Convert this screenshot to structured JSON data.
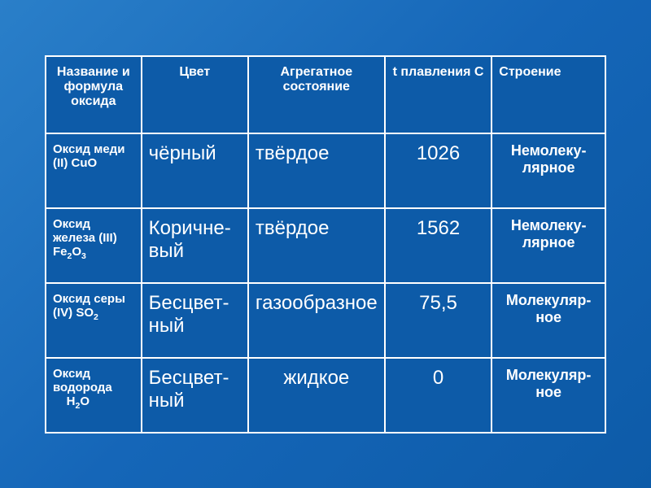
{
  "table": {
    "background_color": "#0d5ba8",
    "border_color": "#ffffff",
    "text_color": "#ffffff",
    "header_fontsize": 16,
    "rowlabel_fontsize": 15,
    "cell_fontsize": 24,
    "struct_fontsize": 18,
    "columns": [
      "Название и формула оксида",
      "Цвет",
      "Агрегатное состояние",
      "t плавления С",
      "Строение"
    ],
    "rows": [
      {
        "name_html": "Оксид меди (II) CuO",
        "color": "чёрный",
        "state": "твёрдое",
        "tmelt": "1026",
        "structure": "Немолеку-лярное"
      },
      {
        "name_html": "Оксид железа (III) Fe₂O₃",
        "color": "Коричне-вый",
        "state": "твёрдое",
        "tmelt": "1562",
        "structure": "Немолеку-лярное"
      },
      {
        "name_html": "Оксид серы (IV) SO₂",
        "color": "Бесцвет-ный",
        "state": "газообразное",
        "tmelt": "75,5",
        "structure": "Молекуляр-ное"
      },
      {
        "name_html": "Оксид водорода H₂O",
        "color": "Бесцвет-ный",
        "state": "жидкое",
        "tmelt": "0",
        "structure": "Молекуляр-ное"
      }
    ]
  }
}
